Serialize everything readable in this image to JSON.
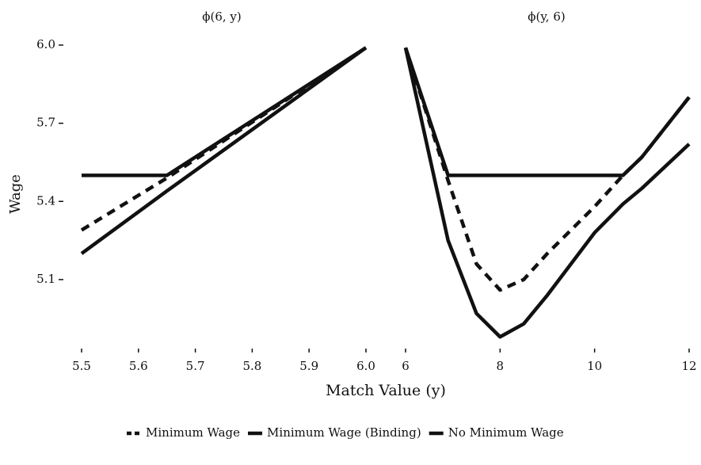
{
  "chart_data": [
    {
      "type": "line",
      "title": "ϕ(6, y)",
      "ylabel": "Wage",
      "xlabel": "Match Value (y)",
      "x": [
        5.5,
        5.65,
        6.0
      ],
      "xlim": [
        5.5,
        6.0
      ],
      "xticks": [
        5.5,
        5.6,
        5.7,
        5.8,
        5.9,
        {
          "value": 6,
          "label": "6.0"
        }
      ],
      "ylim": [
        4.82,
        6.05
      ],
      "yticks": [
        {
          "value": 6,
          "label": "6.0"
        },
        5.7,
        5.4,
        5.1
      ],
      "series": [
        {
          "name": "Minimum Wage",
          "color": "#111111",
          "dash": true,
          "values": [
            5.29,
            5.49,
            5.99
          ]
        },
        {
          "name": "Minimum Wage (Binding)",
          "color": "#111111",
          "dash": false,
          "values": [
            5.5,
            5.5,
            5.99
          ]
        },
        {
          "name": "No Minimum Wage",
          "color": "#111111",
          "dash": false,
          "values": [
            5.2,
            5.44,
            5.99
          ]
        }
      ]
    },
    {
      "type": "line",
      "title": "ϕ(y, 6)",
      "x": [
        6,
        6.9,
        7.5,
        8,
        8.5,
        9,
        10,
        10.6,
        11,
        12
      ],
      "xlim": [
        6,
        12
      ],
      "xticks": [
        6,
        8,
        10,
        12
      ],
      "ylim": [
        4.82,
        6.05
      ],
      "series": [
        {
          "color": "#111111",
          "dash": true,
          "values": [
            5.99,
            5.48,
            5.16,
            5.06,
            5.1,
            5.2,
            5.38,
            5.5,
            5.57,
            5.8
          ]
        },
        {
          "color": "#111111",
          "dash": false,
          "values": [
            5.99,
            5.5,
            5.5,
            5.5,
            5.5,
            5.5,
            5.5,
            5.5,
            5.57,
            5.8
          ]
        },
        {
          "color": "#111111",
          "dash": false,
          "values": [
            5.99,
            5.25,
            4.97,
            4.88,
            4.93,
            5.04,
            5.28,
            5.39,
            5.45,
            5.62
          ]
        }
      ]
    }
  ]
}
